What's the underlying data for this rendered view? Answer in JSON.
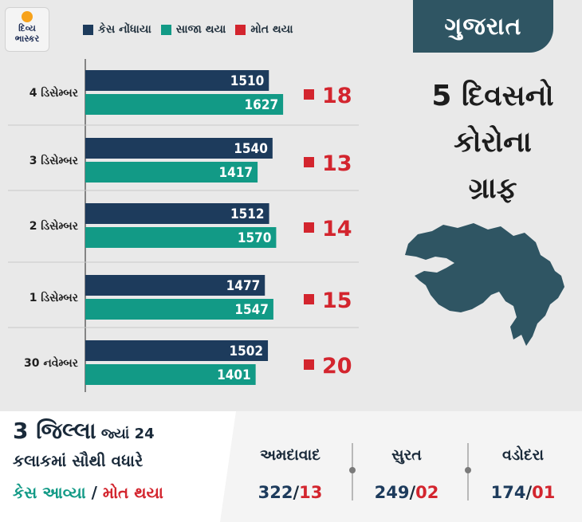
{
  "logo": {
    "line1": "દિવ્ય",
    "line2": "ભાસ્કર"
  },
  "legend": [
    {
      "label": "કેસ નોંધાયા",
      "color": "#1d3b5c"
    },
    {
      "label": "સાજા થયા",
      "color": "#129a86"
    },
    {
      "label": "મોત થયા",
      "color": "#d3252e"
    }
  ],
  "state": "ગુજરાત",
  "panel_title": [
    "5 દિવસનો",
    "કોરોના",
    "ગ્રાફ"
  ],
  "chart_data": {
    "type": "bar",
    "orientation": "horizontal",
    "categories": [
      "4 ડિસેમ્બર",
      "3 ડિસેમ્બર",
      "2 ડિસેમ્બર",
      "1 ડિસેમ્બર",
      "30 નવેમ્બર"
    ],
    "series": [
      {
        "name": "કેસ નોંધાયા",
        "color": "#1d3b5c",
        "values": [
          1510,
          1540,
          1512,
          1477,
          1502
        ]
      },
      {
        "name": "સાજા થયા",
        "color": "#129a86",
        "values": [
          1627,
          1417,
          1570,
          1547,
          1401
        ]
      },
      {
        "name": "મોત થયા",
        "color": "#d3252e",
        "values": [
          18,
          13,
          14,
          15,
          20
        ]
      }
    ]
  },
  "bottom": {
    "headline_big": "3 જિલ્લા",
    "headline_small": " જ્યાં 24",
    "line2": "કલાકમાં સૌથી વધારે",
    "line3_a": "કેસ આવ્યા",
    "line3_sep": " / ",
    "line3_b": "મોત થયા",
    "cities": [
      {
        "name": "અમદાવાદ",
        "cases": "322",
        "deaths": "13"
      },
      {
        "name": "સુરત",
        "cases": "249",
        "deaths": "02"
      },
      {
        "name": "વડોદરા",
        "cases": "174",
        "deaths": "01"
      }
    ],
    "value_sep": "/"
  }
}
